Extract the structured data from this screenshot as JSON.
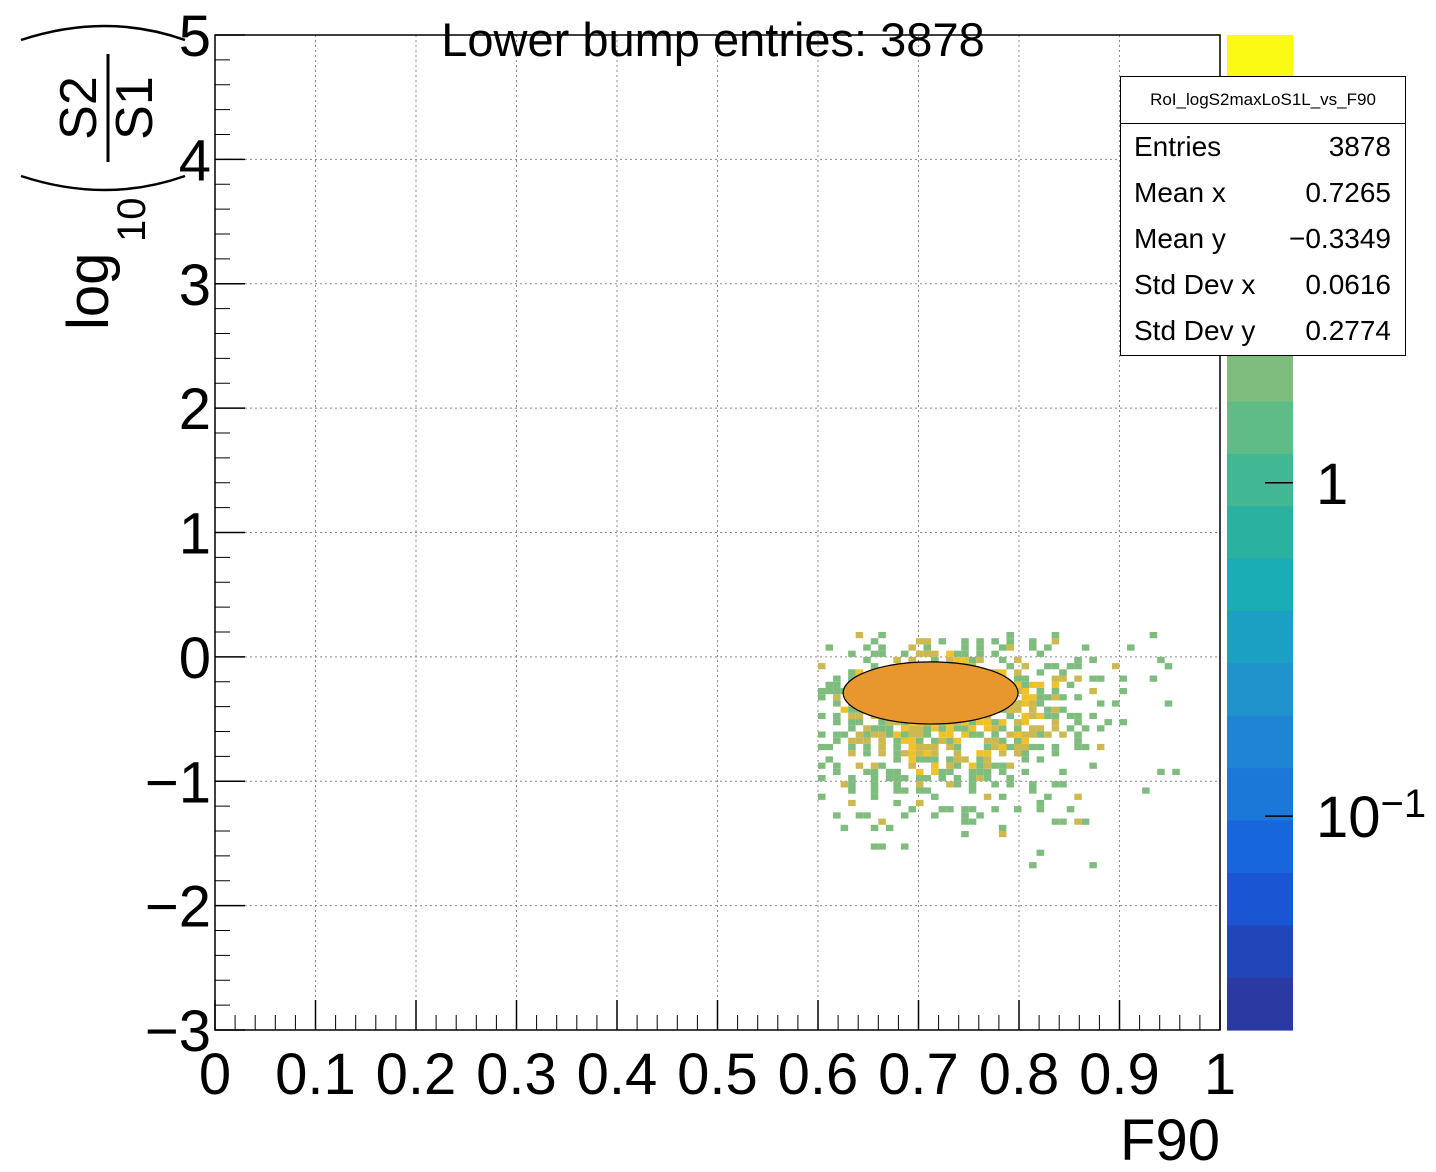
{
  "chart_data": {
    "type": "heatmap",
    "title": "Lower bump entries: 3878",
    "xlabel": "F90",
    "ylabel_parts": {
      "log": "log",
      "sub": "10",
      "num": "S2",
      "den": "S1"
    },
    "xlim": [
      0,
      1
    ],
    "ylim": [
      -3,
      5
    ],
    "x_ticks": [
      "0",
      "0.1",
      "0.2",
      "0.3",
      "0.4",
      "0.5",
      "0.6",
      "0.7",
      "0.8",
      "0.9",
      "1"
    ],
    "y_ticks": [
      "−3",
      "−2",
      "−1",
      "0",
      "1",
      "2",
      "3",
      "4",
      "5"
    ],
    "grid": true,
    "bins": {
      "x_width": 0.0075,
      "y_width": 0.05
    },
    "distribution": {
      "mean_x": 0.7265,
      "mean_y": -0.3349,
      "std_x": 0.0616,
      "std_y": 0.2774,
      "x_range": [
        0.6,
        0.985
      ],
      "y_range": [
        -1.8,
        0.2
      ]
    },
    "contour_ellipse": {
      "center_x": 0.712,
      "center_y": -0.29,
      "semi_x": 0.087,
      "semi_y": 0.25
    },
    "colorbar": {
      "scale": "log",
      "tick_labels": [
        {
          "base": "1",
          "exp": ""
        },
        {
          "base": "10",
          "exp": "−1"
        }
      ],
      "colors": [
        "#fafa14",
        "#efc22c",
        "#e0b73b",
        "#cdb851",
        "#b5b867",
        "#9bbd74",
        "#7fbd7e",
        "#5fbc86",
        "#41b793",
        "#2ab19f",
        "#1aadb5",
        "#1ba0c3",
        "#1f93cc",
        "#1e85d4",
        "#1b77d8",
        "#1866dc",
        "#1a55d3",
        "#2146b9",
        "#2b3aa3"
      ]
    }
  },
  "stats": {
    "name": "RoI_logS2maxLoS1L_vs_F90",
    "rows": [
      {
        "label": "Entries",
        "value": "3878"
      },
      {
        "label": "Mean x",
        "value": "0.7265"
      },
      {
        "label": "Mean y",
        "value": "−0.3349"
      },
      {
        "label": "Std Dev x",
        "value": "0.0616"
      },
      {
        "label": "Std Dev y",
        "value": "0.2774"
      }
    ]
  },
  "colors": {
    "ellipse_fill": "#e8962e",
    "hot_bin": "#efc22c",
    "sparse_bin": "#7fbd7e",
    "mid_bin": "#cdb851"
  }
}
